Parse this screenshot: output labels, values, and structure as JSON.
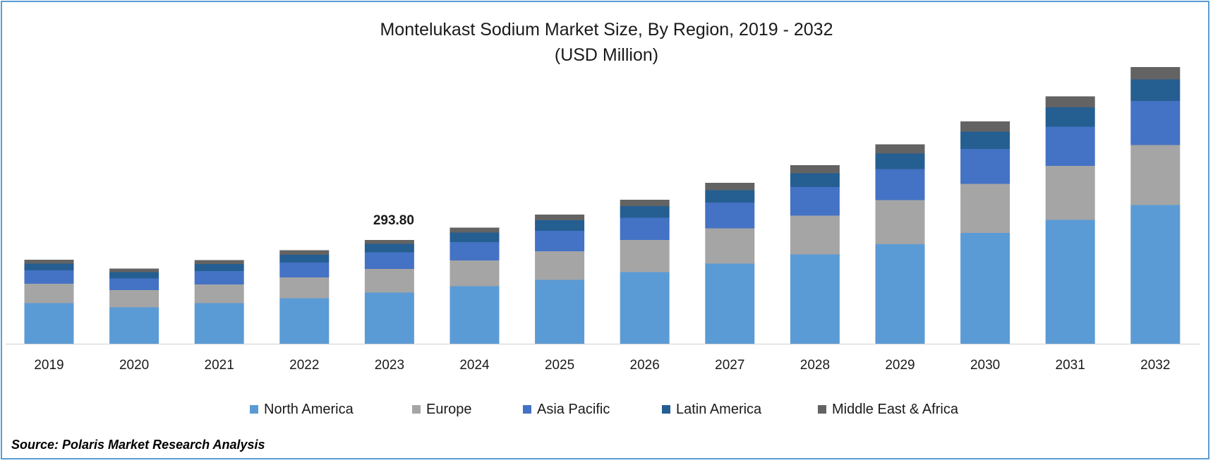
{
  "chart_data": {
    "type": "bar",
    "stacked": true,
    "title": "Montelukast Sodium Market Size, By Region, 2019 - 2032",
    "subtitle": "(USD Million)",
    "categories": [
      "2019",
      "2020",
      "2021",
      "2022",
      "2023",
      "2024",
      "2025",
      "2026",
      "2027",
      "2028",
      "2029",
      "2030",
      "2031",
      "2032"
    ],
    "series": [
      {
        "name": "North America",
        "color": "#5b9bd5",
        "values": [
          115,
          103,
          115,
          129,
          145,
          163,
          181,
          203,
          227,
          253,
          282,
          314,
          351,
          393
        ]
      },
      {
        "name": "Europe",
        "color": "#a5a5a5",
        "values": [
          55,
          49,
          53,
          59,
          67,
          73,
          81,
          91,
          100,
          110,
          125,
          139,
          153,
          170
        ]
      },
      {
        "name": "Asia Pacific",
        "color": "#4472c4",
        "values": [
          38,
          33,
          38,
          42,
          47,
          52,
          58,
          63,
          73,
          81,
          88,
          99,
          111,
          125
        ]
      },
      {
        "name": "Latin America",
        "color": "#255e91",
        "values": [
          19,
          18,
          20,
          22,
          24,
          27,
          30,
          33,
          35,
          39,
          44,
          49,
          55,
          61
        ]
      },
      {
        "name": "Middle East & Africa",
        "color": "#636363",
        "values": [
          11,
          10,
          11,
          13,
          11,
          14,
          16,
          18,
          21,
          23,
          26,
          29,
          31,
          35
        ]
      }
    ],
    "data_labels": [
      {
        "category": "2023",
        "text": "293.80"
      }
    ],
    "ylim": [
      0,
      800
    ],
    "grid": false,
    "legend_position": "bottom",
    "xlabel": "",
    "ylabel": ""
  },
  "source": "Source: Polaris Market Research Analysis"
}
